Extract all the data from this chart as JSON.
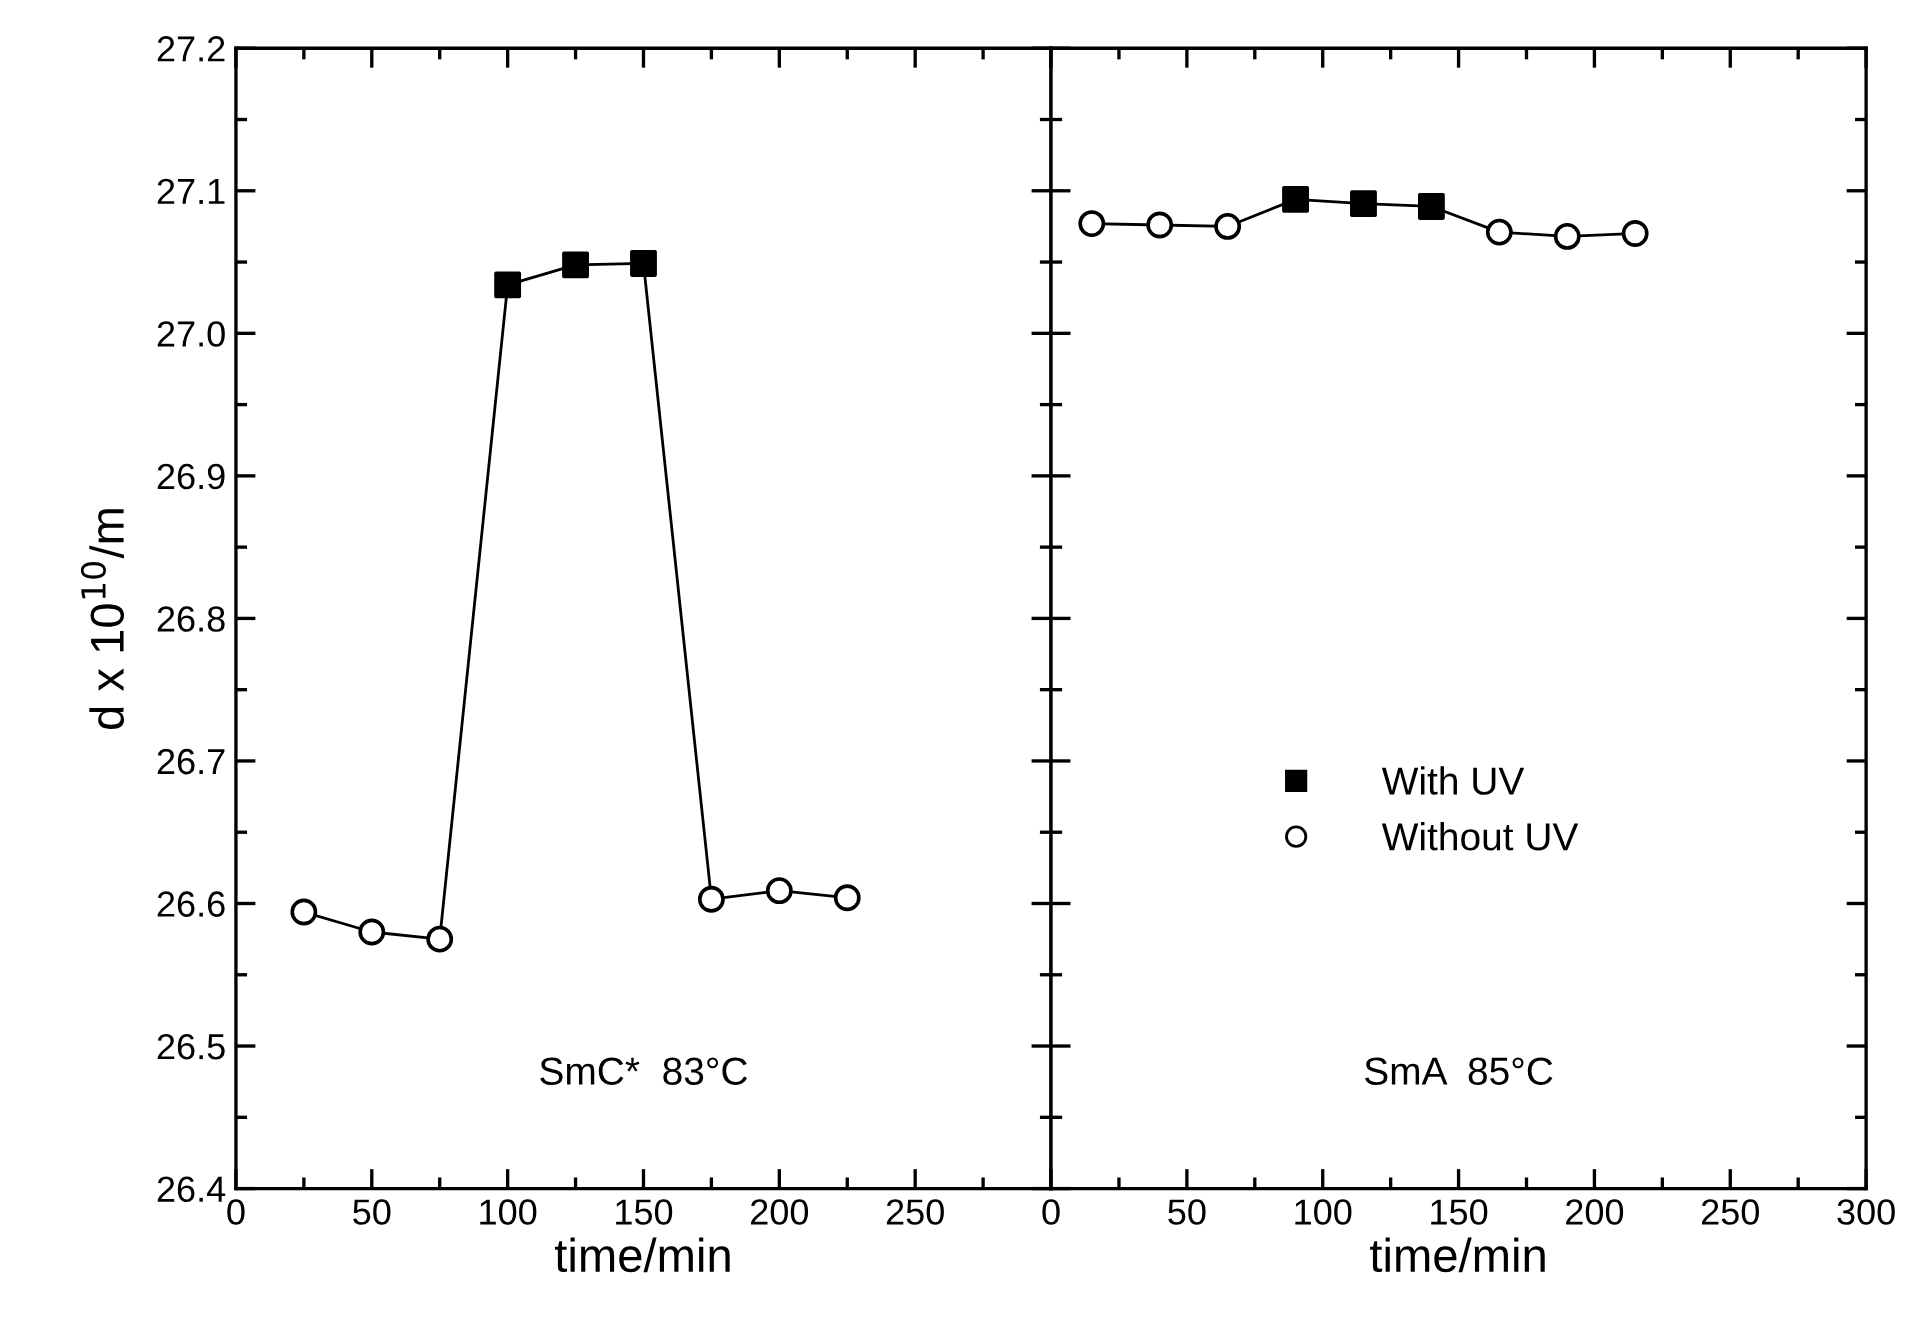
{
  "chart_data": [
    {
      "type": "line",
      "xlabel": "time/min",
      "ylabel": "d x 10$^{10}$/m",
      "xlim": [
        0,
        300
      ],
      "xticks": [
        0,
        50,
        100,
        150,
        200,
        250,
        {
          "value": 300,
          "label": null
        }
      ],
      "ylim": [
        26.4,
        27.2
      ],
      "yticks": [
        26.4,
        26.5,
        26.6,
        26.7,
        26.8,
        26.9,
        {
          "value": 27.0,
          "label": "27.0"
        },
        27.1,
        27.2
      ],
      "annotations": [
        "SmC*  83°C"
      ],
      "x": [
        25,
        50,
        75,
        100,
        125,
        150,
        175,
        200,
        225
      ],
      "series": [
        {
          "color": "#000000",
          "marker": "none",
          "values": [
            26.594,
            26.58,
            26.575,
            27.034,
            27.048,
            27.049,
            26.603,
            26.609,
            26.604
          ]
        },
        {
          "type": "scatter",
          "color": "#000000",
          "marker": "square",
          "values": [
            null,
            null,
            null,
            27.034,
            27.048,
            27.049,
            null,
            null,
            null
          ]
        },
        {
          "type": "scatter",
          "color": "#ffffff",
          "marker": "circle",
          "values": [
            26.594,
            26.58,
            26.575,
            null,
            null,
            null,
            26.603,
            26.609,
            26.604
          ]
        }
      ]
    },
    {
      "type": "line",
      "xlabel": "time/min",
      "xlim": [
        0,
        300
      ],
      "xticks": [
        0,
        50,
        100,
        150,
        200,
        250,
        300
      ],
      "ylim": [
        26.4,
        27.2
      ],
      "yticks": [
        26.4,
        26.5,
        26.6,
        26.7,
        26.8,
        26.9,
        27.0,
        27.1,
        27.2
      ],
      "tick_labels": "x",
      "annotations": [
        "SmA  85°C"
      ],
      "legend": "center",
      "x": [
        15,
        40,
        65,
        90,
        115,
        140,
        165,
        190,
        215
      ],
      "series": [
        {
          "color": "#000000",
          "marker": "none",
          "values": [
            27.077,
            27.076,
            27.075,
            27.094,
            27.091,
            27.089,
            27.071,
            27.068,
            27.07
          ]
        },
        {
          "type": "scatter",
          "name": "With UV",
          "color": "#000000",
          "marker": "square",
          "values": [
            null,
            null,
            null,
            27.094,
            27.091,
            27.089,
            null,
            null,
            null
          ]
        },
        {
          "type": "scatter",
          "name": "Without UV",
          "color": "#ffffff",
          "marker": "circle",
          "values": [
            27.077,
            27.076,
            27.075,
            null,
            null,
            null,
            27.071,
            27.068,
            27.07
          ]
        }
      ]
    }
  ]
}
